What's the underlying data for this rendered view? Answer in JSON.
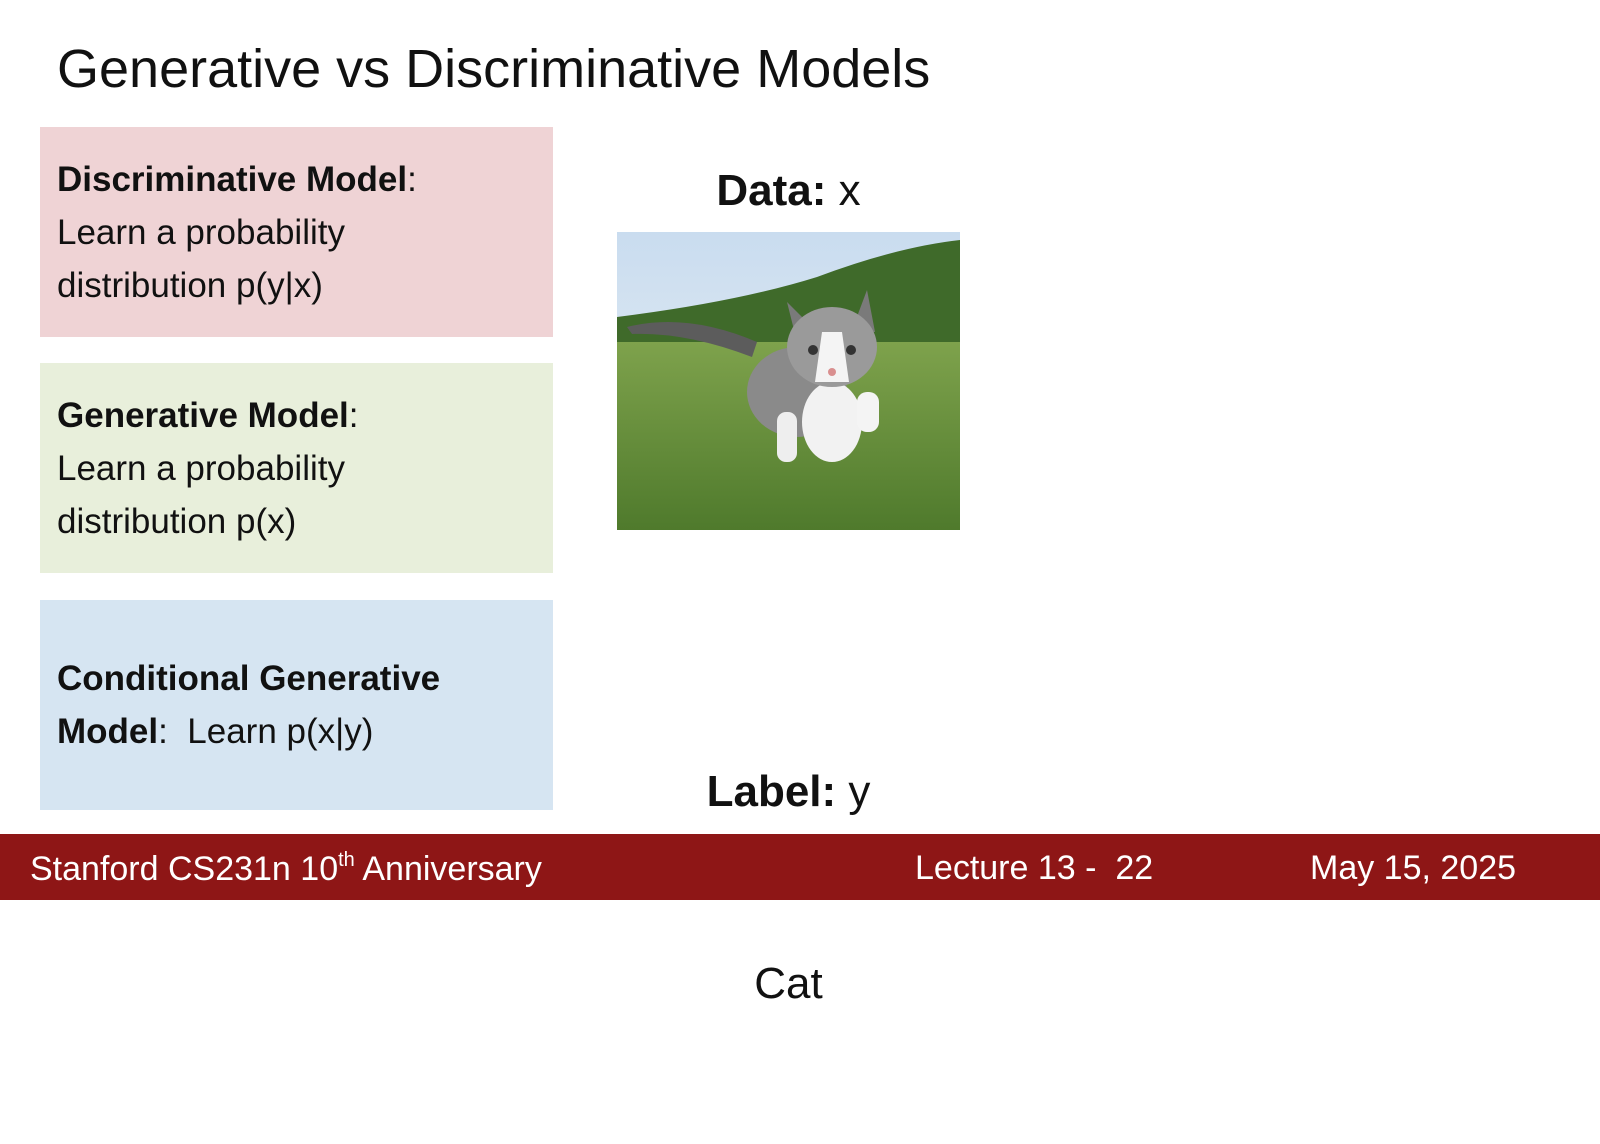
{
  "header": {
    "title": "Generative vs Discriminative Models"
  },
  "boxes": [
    {
      "term": "Discriminative Model",
      "suffix": ":",
      "lines": [
        "Learn a probability",
        "distribution p(y|x)"
      ]
    },
    {
      "term": "Generative Model",
      "suffix": ":",
      "lines": [
        "Learn a probability",
        "distribution p(x)"
      ]
    },
    {
      "term_lines": [
        "Conditional Generative",
        "Model"
      ],
      "suffix": ":  Learn p(x|y)"
    }
  ],
  "data_caption": {
    "label": "Data:",
    "symbol": "x"
  },
  "label_caption": {
    "label": "Label:",
    "symbol": "y",
    "value": "Cat"
  },
  "footer": {
    "course": "Stanford CS231n 10",
    "superscript": "th",
    "course_rest": " Anniversary",
    "lecture": "Lecture 13 -  22",
    "date": "May 15, 2025"
  }
}
